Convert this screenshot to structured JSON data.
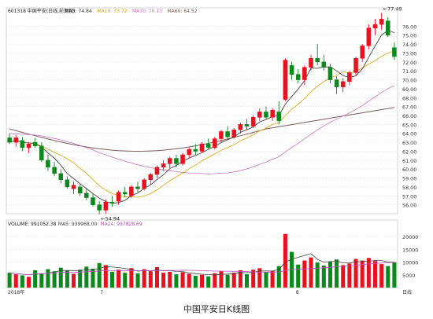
{
  "caption": "中国平安日K线图",
  "colors": {
    "up": "#e8121f",
    "down": "#0a8a1a",
    "ma5": "#333333",
    "ma10": "#e0a000",
    "ma30": "#d070c0",
    "ma60": "#7a5a5a",
    "vol_ma5": "#444444",
    "vol_ma24": "#c050c0",
    "grid": "#c8c8c8",
    "axis_text": "#333333"
  },
  "price_header": {
    "code_name": "601318 中国平安(日线,前复权)",
    "ma5": "MA5: 74.84",
    "ma10": "MA10: 73.72",
    "ma30": "MA30: 70.13",
    "ma60": "MA60: 64.52"
  },
  "volume_header": {
    "label": "VOLUME: 991052.38",
    "ma5": "MA5: 939968.00",
    "ma24": "MA24: 997828.69"
  },
  "chart_data": {
    "type": "candlestick",
    "title": "中国平安日K线图",
    "price_axis": {
      "ylim": [
        55.0,
        77.0
      ],
      "ticks": [
        "76.00",
        "75.00",
        "74.00",
        "73.00",
        "72.00",
        "71.00",
        "70.00",
        "69.00",
        "68.00",
        "67.00",
        "66.00",
        "65.00",
        "64.00",
        "63.00",
        "62.00",
        "61.00",
        "60.00",
        "59.00",
        "58.00",
        "57.00",
        "56.00"
      ]
    },
    "volume_axis": {
      "ylim": [
        0,
        24000
      ],
      "ticks": [
        "20000",
        "15000",
        "10000",
        "5000"
      ]
    },
    "x_labels": [
      "2018年",
      "7",
      "8",
      "日线"
    ],
    "annotations": [
      {
        "text": "54.94",
        "index": 14,
        "value": 54.94
      },
      {
        "text": "77.49",
        "index": 58,
        "value": 77.49
      }
    ],
    "candles": [
      {
        "o": 63.5,
        "h": 64.0,
        "l": 62.8,
        "c": 63.0,
        "v": 5800
      },
      {
        "o": 63.0,
        "h": 63.8,
        "l": 62.5,
        "c": 63.5,
        "v": 5200
      },
      {
        "o": 63.2,
        "h": 63.6,
        "l": 62.0,
        "c": 62.4,
        "v": 4800
      },
      {
        "o": 62.4,
        "h": 63.0,
        "l": 61.8,
        "c": 62.8,
        "v": 4200
      },
      {
        "o": 63.0,
        "h": 63.5,
        "l": 62.4,
        "c": 62.6,
        "v": 6800
      },
      {
        "o": 62.6,
        "h": 63.0,
        "l": 60.8,
        "c": 61.0,
        "v": 5500
      },
      {
        "o": 61.0,
        "h": 61.6,
        "l": 59.8,
        "c": 60.2,
        "v": 7200
      },
      {
        "o": 60.2,
        "h": 60.8,
        "l": 59.2,
        "c": 59.5,
        "v": 6400
      },
      {
        "o": 59.5,
        "h": 60.0,
        "l": 58.4,
        "c": 58.8,
        "v": 7800
      },
      {
        "o": 58.8,
        "h": 59.2,
        "l": 57.8,
        "c": 58.0,
        "v": 6600
      },
      {
        "o": 57.8,
        "h": 58.6,
        "l": 57.2,
        "c": 58.2,
        "v": 5400
      },
      {
        "o": 58.0,
        "h": 58.4,
        "l": 57.0,
        "c": 57.3,
        "v": 7000
      },
      {
        "o": 57.3,
        "h": 57.8,
        "l": 56.5,
        "c": 56.8,
        "v": 8200
      },
      {
        "o": 56.8,
        "h": 57.2,
        "l": 55.8,
        "c": 56.0,
        "v": 7400
      },
      {
        "o": 56.0,
        "h": 56.4,
        "l": 54.94,
        "c": 55.4,
        "v": 9600
      },
      {
        "o": 55.4,
        "h": 56.6,
        "l": 55.0,
        "c": 56.3,
        "v": 8800
      },
      {
        "o": 56.3,
        "h": 57.0,
        "l": 55.8,
        "c": 56.2,
        "v": 6200
      },
      {
        "o": 56.4,
        "h": 57.6,
        "l": 56.0,
        "c": 57.4,
        "v": 7000
      },
      {
        "o": 57.4,
        "h": 58.0,
        "l": 56.8,
        "c": 57.2,
        "v": 5800
      },
      {
        "o": 57.0,
        "h": 58.2,
        "l": 56.8,
        "c": 58.0,
        "v": 7600
      },
      {
        "o": 58.0,
        "h": 58.6,
        "l": 57.4,
        "c": 57.8,
        "v": 5600
      },
      {
        "o": 57.8,
        "h": 59.0,
        "l": 57.6,
        "c": 58.8,
        "v": 7200
      },
      {
        "o": 58.8,
        "h": 59.6,
        "l": 58.2,
        "c": 59.4,
        "v": 6400
      },
      {
        "o": 59.4,
        "h": 60.4,
        "l": 59.0,
        "c": 60.2,
        "v": 8000
      },
      {
        "o": 60.2,
        "h": 61.0,
        "l": 59.8,
        "c": 60.6,
        "v": 5800
      },
      {
        "o": 60.6,
        "h": 61.4,
        "l": 60.0,
        "c": 61.2,
        "v": 6200
      },
      {
        "o": 61.2,
        "h": 61.6,
        "l": 60.2,
        "c": 60.6,
        "v": 5200
      },
      {
        "o": 60.6,
        "h": 61.8,
        "l": 60.4,
        "c": 61.6,
        "v": 6000
      },
      {
        "o": 61.6,
        "h": 62.4,
        "l": 61.2,
        "c": 62.2,
        "v": 5400
      },
      {
        "o": 62.2,
        "h": 62.8,
        "l": 61.6,
        "c": 62.0,
        "v": 4600
      },
      {
        "o": 62.0,
        "h": 63.0,
        "l": 61.8,
        "c": 62.8,
        "v": 5000
      },
      {
        "o": 62.8,
        "h": 63.4,
        "l": 62.2,
        "c": 62.4,
        "v": 4400
      },
      {
        "o": 62.4,
        "h": 63.6,
        "l": 62.2,
        "c": 63.4,
        "v": 5600
      },
      {
        "o": 63.4,
        "h": 64.4,
        "l": 63.0,
        "c": 64.2,
        "v": 6400
      },
      {
        "o": 64.2,
        "h": 64.8,
        "l": 63.4,
        "c": 63.6,
        "v": 5000
      },
      {
        "o": 63.6,
        "h": 64.6,
        "l": 63.4,
        "c": 64.4,
        "v": 5800
      },
      {
        "o": 64.4,
        "h": 65.2,
        "l": 64.0,
        "c": 65.0,
        "v": 6800
      },
      {
        "o": 65.0,
        "h": 65.6,
        "l": 64.4,
        "c": 64.8,
        "v": 5200
      },
      {
        "o": 64.8,
        "h": 66.0,
        "l": 64.6,
        "c": 65.8,
        "v": 7000
      },
      {
        "o": 65.8,
        "h": 66.8,
        "l": 65.4,
        "c": 66.4,
        "v": 7600
      },
      {
        "o": 66.4,
        "h": 67.0,
        "l": 65.6,
        "c": 65.8,
        "v": 6000
      },
      {
        "o": 65.8,
        "h": 66.8,
        "l": 65.4,
        "c": 66.6,
        "v": 6600
      },
      {
        "o": 66.4,
        "h": 67.6,
        "l": 65.0,
        "c": 65.4,
        "v": 8400
      },
      {
        "o": 67.8,
        "h": 72.4,
        "l": 67.6,
        "c": 72.2,
        "v": 21000
      },
      {
        "o": 71.6,
        "h": 72.0,
        "l": 70.0,
        "c": 70.6,
        "v": 14000
      },
      {
        "o": 70.6,
        "h": 71.2,
        "l": 69.6,
        "c": 70.0,
        "v": 9000
      },
      {
        "o": 70.0,
        "h": 71.6,
        "l": 69.4,
        "c": 71.4,
        "v": 10600
      },
      {
        "o": 71.4,
        "h": 72.8,
        "l": 71.0,
        "c": 72.4,
        "v": 11800
      },
      {
        "o": 72.4,
        "h": 74.0,
        "l": 71.6,
        "c": 72.0,
        "v": 9800
      },
      {
        "o": 72.0,
        "h": 72.8,
        "l": 71.0,
        "c": 71.4,
        "v": 8600
      },
      {
        "o": 71.4,
        "h": 71.8,
        "l": 69.6,
        "c": 70.0,
        "v": 10200
      },
      {
        "o": 70.0,
        "h": 70.4,
        "l": 68.4,
        "c": 69.2,
        "v": 11000
      },
      {
        "o": 69.2,
        "h": 70.2,
        "l": 68.6,
        "c": 69.8,
        "v": 8800
      },
      {
        "o": 69.8,
        "h": 71.0,
        "l": 69.4,
        "c": 70.8,
        "v": 9400
      },
      {
        "o": 70.8,
        "h": 72.6,
        "l": 70.4,
        "c": 72.4,
        "v": 11200
      },
      {
        "o": 72.4,
        "h": 74.0,
        "l": 72.0,
        "c": 73.8,
        "v": 10600
      },
      {
        "o": 73.8,
        "h": 76.2,
        "l": 73.4,
        "c": 75.8,
        "v": 11600
      },
      {
        "o": 75.8,
        "h": 76.8,
        "l": 75.0,
        "c": 76.2,
        "v": 10400
      },
      {
        "o": 76.2,
        "h": 77.49,
        "l": 75.6,
        "c": 76.8,
        "v": 9200
      },
      {
        "o": 76.6,
        "h": 77.0,
        "l": 74.8,
        "c": 75.0,
        "v": 8400
      },
      {
        "o": 73.6,
        "h": 74.2,
        "l": 72.2,
        "c": 72.6,
        "v": 9910
      }
    ]
  }
}
